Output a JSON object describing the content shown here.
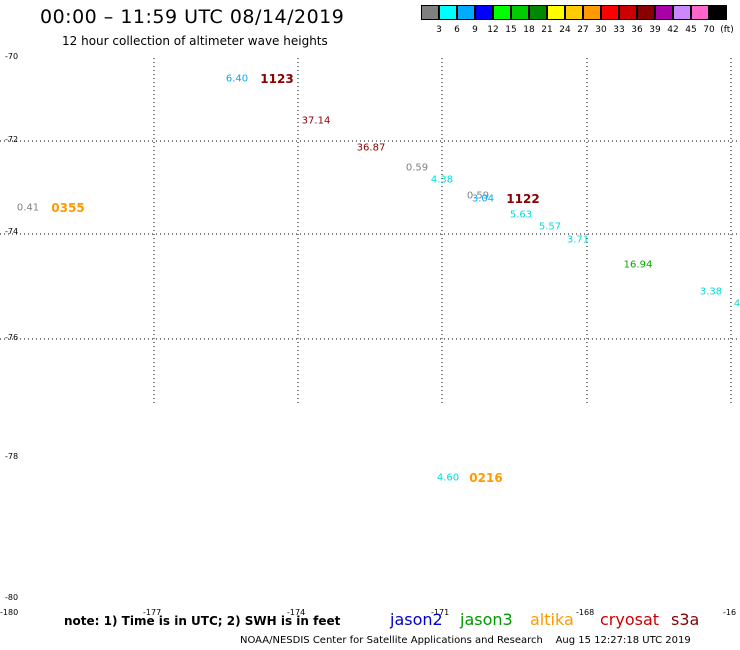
{
  "header": {
    "title": "00:00 – 11:59 UTC 08/14/2019",
    "subtitle": "12 hour collection of altimeter wave heights"
  },
  "scale": {
    "unit": "(ft)",
    "colors": [
      "#808080",
      "#00ffff",
      "#00aaff",
      "#0000ff",
      "#00ff00",
      "#00cc00",
      "#008800",
      "#ffff00",
      "#ffcc00",
      "#ff9900",
      "#ff0000",
      "#cc0000",
      "#880000",
      "#aa00aa",
      "#cc88ff",
      "#ff66cc",
      "#000000"
    ],
    "labels": [
      "3",
      "6",
      "9",
      "12",
      "15",
      "18",
      "21",
      "24",
      "27",
      "30",
      "33",
      "36",
      "39",
      "42",
      "45",
      "70"
    ]
  },
  "axes": {
    "lat_labels": [
      "-70",
      "-72",
      "-74",
      "-76",
      "-78",
      "-80"
    ],
    "lon_labels": [
      "-180",
      "-177",
      "-174",
      "-171",
      "-168",
      "-16"
    ]
  },
  "waves": [
    {
      "text": "6.40",
      "color": "#00aaff"
    },
    {
      "text": "37.14",
      "color": "#880000"
    },
    {
      "text": "36.87",
      "color": "#880000"
    },
    {
      "text": "0.59",
      "color": "#808080"
    },
    {
      "text": "4.38",
      "color": "#00dddd"
    },
    {
      "text": "0.59",
      "color": "#808080"
    },
    {
      "text": "3.04",
      "color": "#00aaff"
    },
    {
      "text": "5.63",
      "color": "#00dddd"
    },
    {
      "text": "5.57",
      "color": "#00dddd"
    },
    {
      "text": "3.71",
      "color": "#00dddd"
    },
    {
      "text": "16.94",
      "color": "#00aa00"
    },
    {
      "text": "3.38",
      "color": "#00dddd"
    },
    {
      "text": "4",
      "color": "#00dddd"
    },
    {
      "text": "0.41",
      "color": "#808080"
    },
    {
      "text": "4.60",
      "color": "#00dddd"
    }
  ],
  "times": [
    {
      "text": "1123",
      "color": "#880000"
    },
    {
      "text": "1122",
      "color": "#880000"
    },
    {
      "text": "0355",
      "color": "#ff9900"
    },
    {
      "text": "0216",
      "color": "#ff9900"
    }
  ],
  "footer": {
    "note": "note: 1) Time is in UTC; 2) SWH is in feet",
    "satellites": [
      {
        "name": "jason2",
        "color": "#0000cc"
      },
      {
        "name": "jason3",
        "color": "#009900"
      },
      {
        "name": "altika",
        "color": "#ff9900"
      },
      {
        "name": "cryosat",
        "color": "#cc0000"
      },
      {
        "name": "s3a",
        "color": "#880000"
      }
    ],
    "credit": "NOAA/NESDIS Center for Satellite Applications and Research    Aug 15 12:27:18 UTC 2019"
  }
}
